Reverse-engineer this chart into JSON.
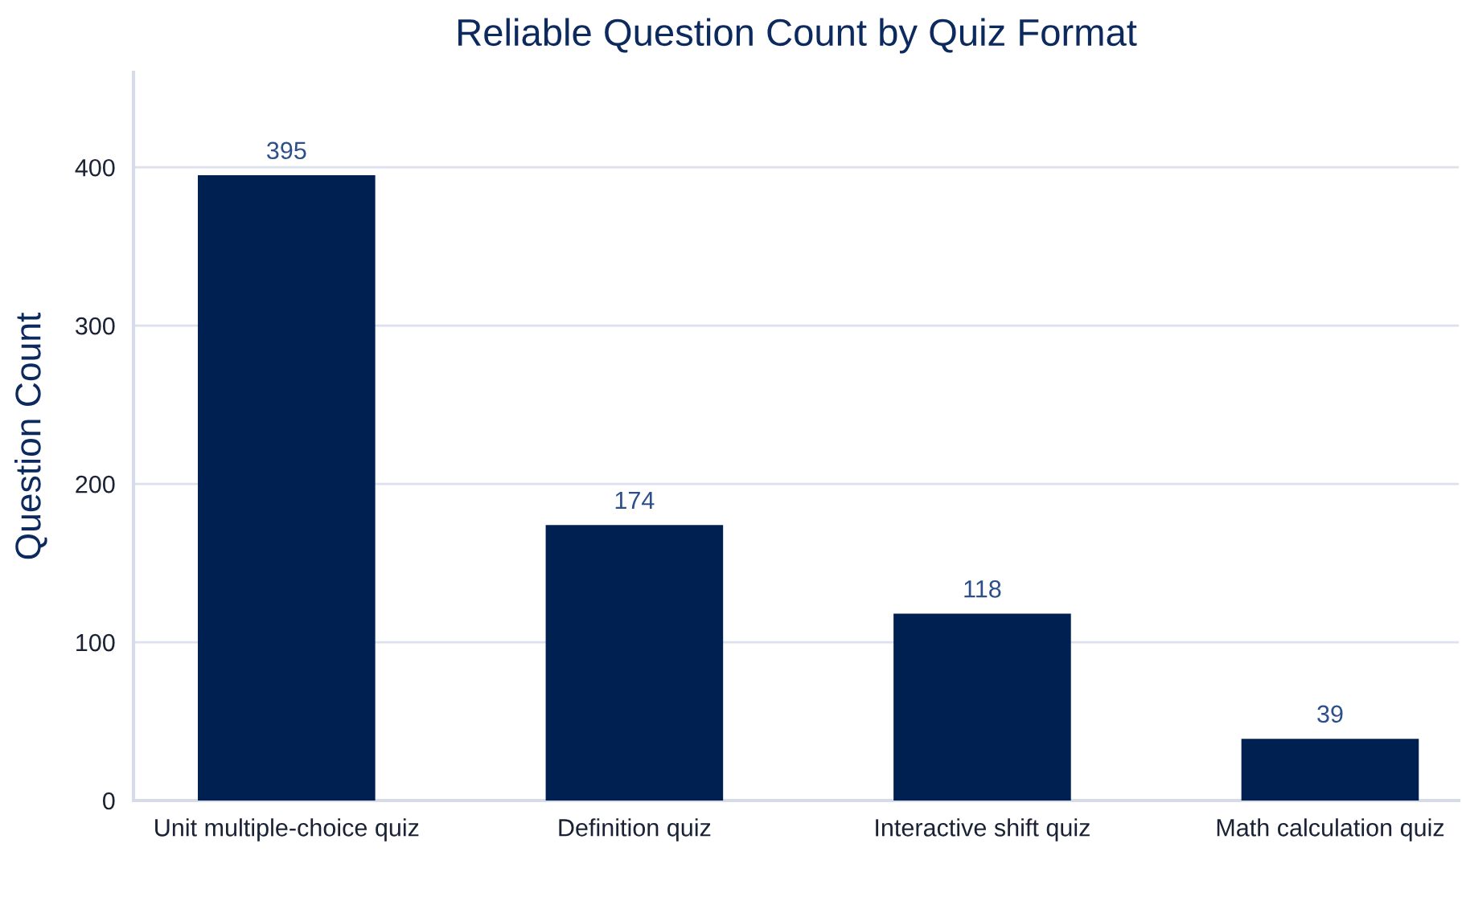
{
  "chart_data": {
    "type": "bar",
    "title": "Reliable Question Count by Quiz Format",
    "ylabel": "Question Count",
    "categories": [
      "Unit multiple-choice quiz",
      "Definition quiz",
      "Interactive shift quiz",
      "Math calculation quiz"
    ],
    "values": [
      395,
      174,
      118,
      39
    ],
    "color": "#012052",
    "ylim": [
      0,
      460
    ],
    "yticks": [
      0,
      100,
      200,
      300,
      400
    ],
    "grid": "y",
    "data_labels": true
  }
}
